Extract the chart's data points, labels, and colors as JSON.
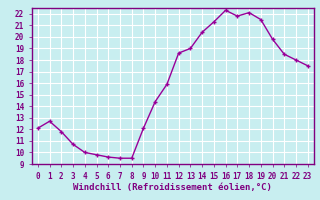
{
  "x": [
    0,
    1,
    2,
    3,
    4,
    5,
    6,
    7,
    8,
    9,
    10,
    11,
    12,
    13,
    14,
    15,
    16,
    17,
    18,
    19,
    20,
    21,
    22,
    23
  ],
  "y": [
    12.1,
    12.7,
    11.8,
    10.7,
    10.0,
    9.8,
    9.6,
    9.5,
    9.5,
    12.1,
    14.4,
    15.9,
    18.6,
    19.0,
    20.4,
    21.3,
    22.3,
    21.8,
    22.1,
    21.5,
    19.8,
    18.5,
    18.0,
    17.5
  ],
  "line_color": "#990099",
  "marker": "+",
  "markersize": 3.5,
  "linewidth": 1.0,
  "xlabel": "Windchill (Refroidissement éolien,°C)",
  "ylabel": "",
  "xlim": [
    -0.5,
    23.5
  ],
  "ylim": [
    9,
    22.5
  ],
  "yticks": [
    9,
    10,
    11,
    12,
    13,
    14,
    15,
    16,
    17,
    18,
    19,
    20,
    21,
    22
  ],
  "xticks": [
    0,
    1,
    2,
    3,
    4,
    5,
    6,
    7,
    8,
    9,
    10,
    11,
    12,
    13,
    14,
    15,
    16,
    17,
    18,
    19,
    20,
    21,
    22,
    23
  ],
  "background_color": "#c8eef0",
  "grid_color": "#ffffff",
  "tick_fontsize": 5.5,
  "xlabel_fontsize": 6.5,
  "border_color": "#800080"
}
